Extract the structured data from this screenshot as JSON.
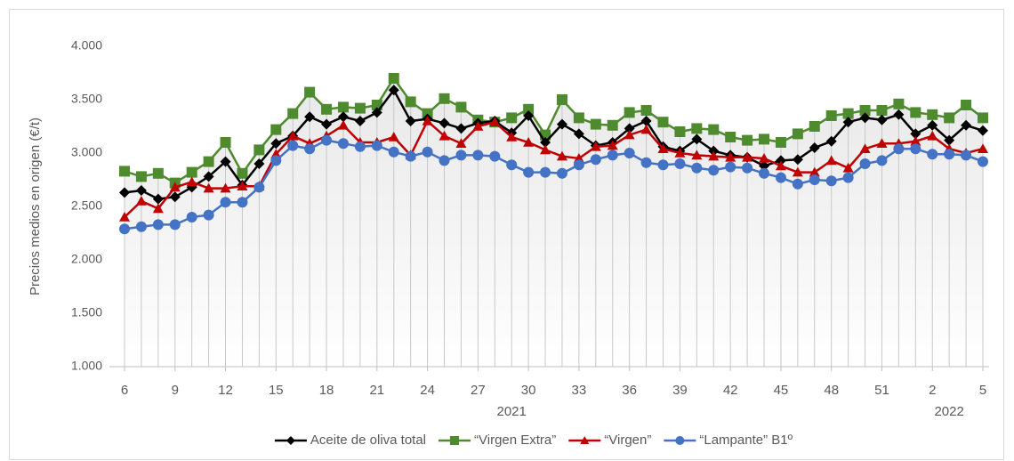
{
  "chart_data": {
    "type": "line",
    "y_label": "Precios medios  en origen (€/t)",
    "categories": [
      "6",
      null,
      null,
      "9",
      null,
      null,
      "12",
      null,
      null,
      "15",
      null,
      null,
      "18",
      null,
      null,
      "21",
      null,
      null,
      "24",
      null,
      null,
      "27",
      null,
      null,
      "30",
      null,
      null,
      "33",
      null,
      null,
      "36",
      null,
      null,
      "39",
      null,
      null,
      "42",
      null,
      null,
      "45",
      null,
      null,
      "48",
      null,
      null,
      "51",
      null,
      null,
      "2",
      null,
      null,
      "5"
    ],
    "x_groups": [
      {
        "label": "2021",
        "count": 47
      },
      {
        "label": "2022",
        "count": 5
      }
    ],
    "ylim": [
      1000,
      4000
    ],
    "yticks": [
      {
        "value": 1000,
        "label": "1.000"
      },
      {
        "value": 1500,
        "label": "1.500"
      },
      {
        "value": 2000,
        "label": "2.000"
      },
      {
        "value": 2500,
        "label": "2.500"
      },
      {
        "value": 3000,
        "label": "3.000"
      },
      {
        "value": 3500,
        "label": "3.500"
      },
      {
        "value": 4000,
        "label": "4.000"
      }
    ],
    "legend": "bottom",
    "series": [
      {
        "name": "Aceite de oliva total",
        "color": "#000000",
        "marker": "diamond",
        "values": [
          2630,
          2650,
          2570,
          2590,
          2680,
          2780,
          2920,
          2700,
          2900,
          3090,
          3160,
          3340,
          3270,
          3340,
          3300,
          3380,
          3590,
          3300,
          3320,
          3280,
          3230,
          3280,
          3300,
          3190,
          3350,
          3100,
          3270,
          3180,
          3070,
          3100,
          3230,
          3300,
          3060,
          3020,
          3130,
          3020,
          2980,
          2960,
          2880,
          2930,
          2940,
          3050,
          3110,
          3290,
          3330,
          3310,
          3360,
          3180,
          3260,
          3120,
          3260,
          3210
        ]
      },
      {
        "name": "“Virgen Extra”",
        "color": "#4e8a2e",
        "marker": "square",
        "values": [
          2830,
          2780,
          2810,
          2720,
          2820,
          2920,
          3100,
          2810,
          3030,
          3220,
          3370,
          3570,
          3410,
          3430,
          3420,
          3450,
          3700,
          3480,
          3370,
          3510,
          3430,
          3310,
          3290,
          3330,
          3410,
          3170,
          3500,
          3330,
          3270,
          3260,
          3380,
          3400,
          3290,
          3200,
          3230,
          3220,
          3150,
          3120,
          3130,
          3100,
          3180,
          3250,
          3350,
          3370,
          3400,
          3400,
          3460,
          3380,
          3360,
          3330,
          3450,
          3330
        ]
      },
      {
        "name": "“Virgen”",
        "color": "#c00000",
        "marker": "triangle",
        "values": [
          2400,
          2550,
          2480,
          2680,
          2730,
          2670,
          2670,
          2690,
          2690,
          2990,
          3160,
          3090,
          3160,
          3260,
          3100,
          3100,
          3150,
          2980,
          3300,
          3160,
          3090,
          3250,
          3290,
          3150,
          3100,
          3030,
          2970,
          2950,
          3060,
          3070,
          3170,
          3220,
          3040,
          3000,
          2980,
          2970,
          2960,
          2960,
          2950,
          2880,
          2820,
          2820,
          2930,
          2860,
          3040,
          3090,
          3090,
          3110,
          3160,
          3040,
          3000,
          3040
        ]
      },
      {
        "name": "“Lampante” B1º",
        "color": "#4472c4",
        "marker": "circle",
        "values": [
          2290,
          2310,
          2330,
          2330,
          2400,
          2420,
          2540,
          2540,
          2680,
          2930,
          3070,
          3040,
          3120,
          3090,
          3060,
          3070,
          3010,
          2970,
          3010,
          2930,
          2980,
          2980,
          2970,
          2890,
          2820,
          2820,
          2810,
          2890,
          2940,
          2980,
          3000,
          2910,
          2890,
          2900,
          2860,
          2840,
          2870,
          2860,
          2810,
          2770,
          2710,
          2750,
          2740,
          2770,
          2900,
          2930,
          3040,
          3040,
          2990,
          2990,
          2980,
          2920
        ]
      }
    ]
  }
}
